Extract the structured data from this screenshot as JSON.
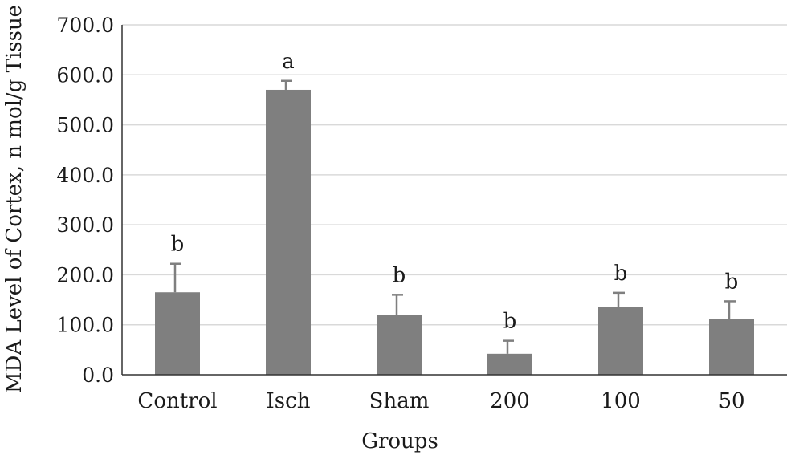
{
  "chart_data": {
    "type": "bar",
    "categories": [
      "Control",
      "Isch",
      "Sham",
      "200",
      "100",
      "50"
    ],
    "values": [
      165,
      570,
      120,
      42,
      136,
      112
    ],
    "errors": [
      57,
      18,
      40,
      26,
      28,
      35
    ],
    "significance": [
      "b",
      "a",
      "b",
      "b",
      "b",
      "b"
    ],
    "xlabel": "Groups",
    "ylabel": "MDA Level of Cortex, n mol/g Tissue",
    "ylim": [
      0,
      700
    ],
    "yticks": [
      "0.0",
      "100.0",
      "200.0",
      "300.0",
      "400.0",
      "500.0",
      "600.0",
      "700.0"
    ],
    "grid": true,
    "bar_color": "#7f7f7f"
  }
}
